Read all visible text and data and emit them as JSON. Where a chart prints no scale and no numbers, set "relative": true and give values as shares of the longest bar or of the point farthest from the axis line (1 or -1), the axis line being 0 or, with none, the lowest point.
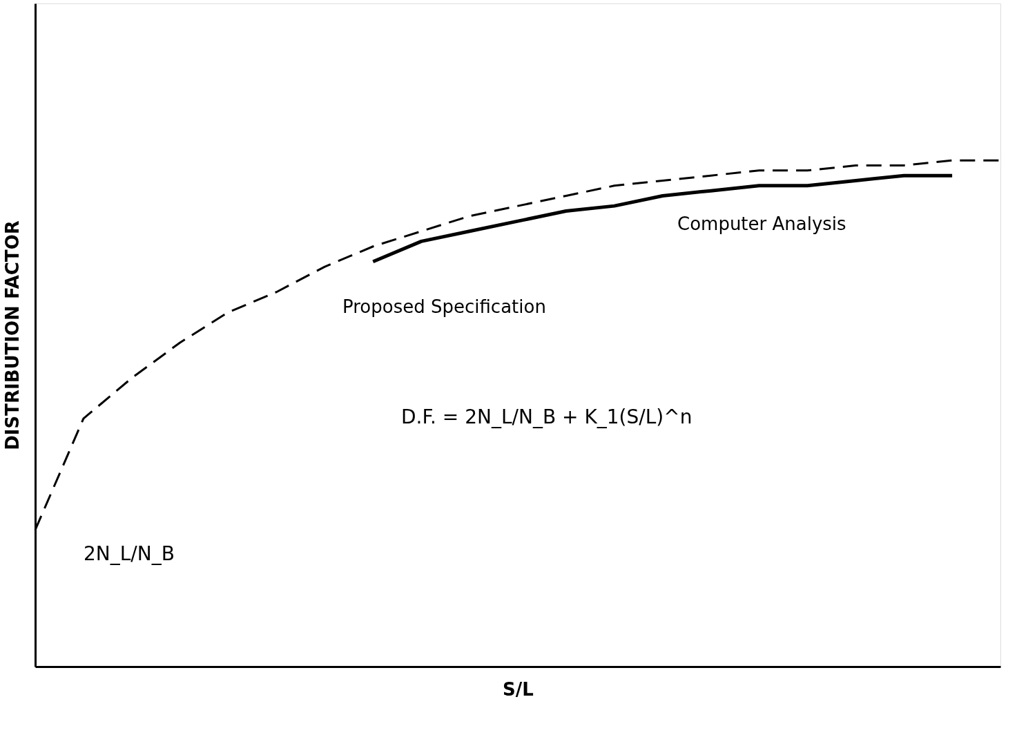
{
  "chart_data": {
    "type": "line",
    "relative": true,
    "xlabel": "S/L",
    "ylabel": "DISTRIBUTION FACTOR",
    "tick_labels": false,
    "grid": false,
    "legend": false,
    "categories": [
      null,
      null,
      null,
      null,
      null,
      null,
      null,
      null,
      null,
      null,
      null,
      null,
      null,
      null,
      null,
      null,
      null,
      null,
      null,
      null,
      null
    ],
    "series": [
      {
        "name": "Proposed Specification",
        "color": "#000000",
        "line_style": "dashed",
        "values": [
          0.27,
          0.49,
          0.57,
          0.64,
          0.7,
          0.74,
          0.79,
          0.83,
          0.86,
          0.89,
          0.91,
          0.93,
          0.95,
          0.96,
          0.97,
          0.98,
          0.98,
          0.99,
          0.99,
          1.0,
          1.0
        ]
      },
      {
        "name": "Computer Analysis",
        "color": "#000000",
        "line_style": "solid",
        "values": [
          null,
          null,
          null,
          null,
          null,
          null,
          null,
          0.8,
          0.84,
          0.86,
          0.88,
          0.9,
          0.91,
          0.93,
          0.94,
          0.95,
          0.95,
          0.96,
          0.97,
          0.97,
          null
        ]
      }
    ],
    "annotations": [
      "D.F. = 2N_L/N_B + K_1(S/L)^n",
      "2N_L/N_B"
    ]
  }
}
